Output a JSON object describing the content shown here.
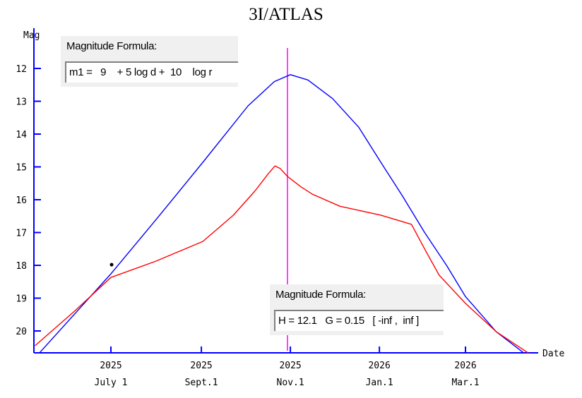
{
  "chart_data": {
    "type": "line",
    "title": "3I/ATLAS",
    "xlabel": "Date",
    "ylabel": "Mag",
    "x_unit": "days since 2025 July 1",
    "xlim": [
      -52,
      293
    ],
    "ylim": [
      20.67,
      10.8
    ],
    "y_inverted": true,
    "y_ticks": [
      12,
      13,
      14,
      15,
      16,
      17,
      18,
      19,
      20
    ],
    "x_ticks": [
      {
        "day": 0,
        "year": "2025",
        "label": "July 1"
      },
      {
        "day": 62,
        "year": "2025",
        "label": "Sept.1"
      },
      {
        "day": 123,
        "year": "2025",
        "label": "Nov.1"
      },
      {
        "day": 184,
        "year": "2026",
        "label": "Jan.1"
      },
      {
        "day": 243,
        "year": "2026",
        "label": "Mar.1"
      }
    ],
    "series": [
      {
        "name": "m1 formula",
        "color": "#0000ff",
        "x": [
          -49,
          0,
          32,
          63,
          94,
          112,
          123,
          135,
          152,
          170,
          185,
          200,
          215,
          230,
          243,
          264,
          283
        ],
        "y": [
          20.67,
          18.26,
          16.55,
          14.86,
          13.14,
          12.4,
          12.19,
          12.35,
          12.92,
          13.8,
          14.86,
          15.9,
          17.0,
          18.0,
          18.95,
          20.02,
          20.67
        ]
      },
      {
        "name": "H-G formula",
        "color": "#ff0000",
        "x": [
          -52,
          -25,
          0,
          31,
          63,
          84,
          99,
          108,
          112.5,
          116,
          121,
          130,
          138,
          157,
          185,
          206,
          215,
          225,
          243,
          264,
          286
        ],
        "y": [
          20.45,
          19.4,
          18.37,
          17.87,
          17.27,
          16.47,
          15.72,
          15.2,
          14.97,
          15.05,
          15.29,
          15.6,
          15.83,
          16.2,
          16.47,
          16.75,
          17.5,
          18.3,
          19.16,
          20.02,
          20.67
        ]
      }
    ],
    "observation": {
      "x": 0.5,
      "y": 17.98,
      "color": "#000000"
    },
    "current_date_marker": {
      "x": 121,
      "color": "#ff00ff"
    },
    "axis_color": "#0000ff"
  },
  "formula_box_1": {
    "label": "Magnitude Formula:",
    "value": "m1 =   9    + 5 log d +  10    log r"
  },
  "formula_box_2": {
    "label": "Magnitude Formula:",
    "value": "H = 12.1   G = 0.15   [ -inf ,  inf ]"
  }
}
